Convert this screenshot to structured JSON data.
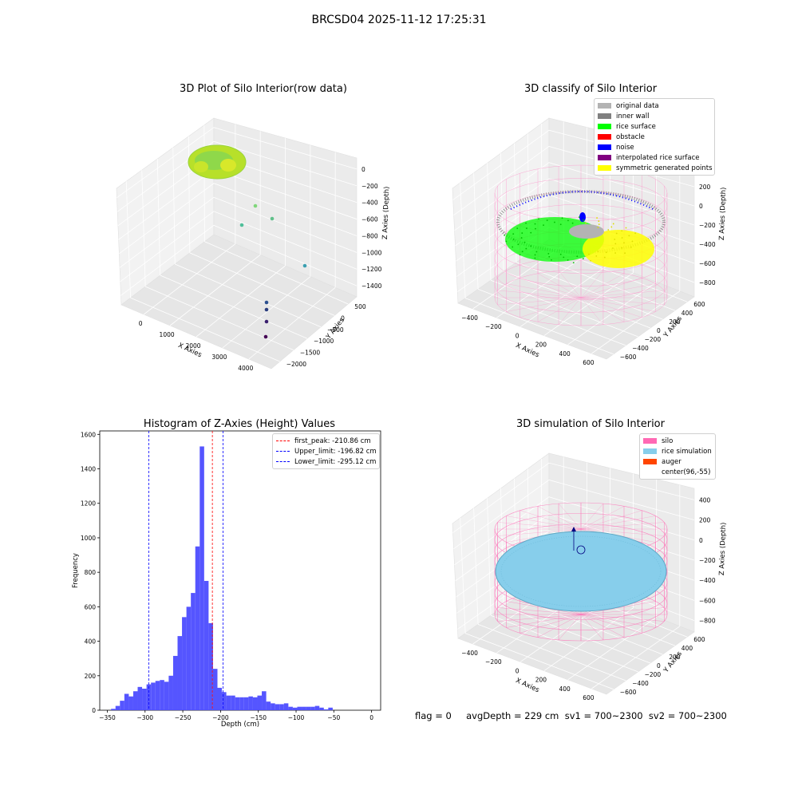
{
  "figure": {
    "title": "BRCSD04 2025-11-12 17:25:31",
    "footer": "flag = 0     avgDepth = 229 cm  sv1 = 700~2300  sv2 = 700~2300"
  },
  "chart_data": [
    {
      "type": "scatter",
      "title": "3D Plot of Silo Interior(row data)",
      "xlabel": "X Axies",
      "ylabel": "Y Axies",
      "zlabel": "Z Axies (Depth)",
      "x_ticks": [
        "0",
        "1000",
        "2000",
        "3000",
        "4000"
      ],
      "y_ticks": [
        "500",
        "0",
        "−500",
        "−1000",
        "−1500",
        "−2000"
      ],
      "z_ticks": [
        "0",
        "−200",
        "−400",
        "−600",
        "−800",
        "−1000",
        "−1200",
        "−1400"
      ],
      "outlier_points": [
        {
          "x": 950,
          "y": -300,
          "z": -600,
          "color": "#7fd67a"
        },
        {
          "x": 1250,
          "y": -350,
          "z": -750,
          "color": "#60c08a"
        },
        {
          "x": 700,
          "y": -150,
          "z": -800,
          "color": "#4fbf9a"
        },
        {
          "x": 2800,
          "y": -400,
          "z": -1400,
          "color": "#3b9fb0"
        },
        {
          "x": 3900,
          "y": -1900,
          "z": -400,
          "color": "#2b4f8f"
        },
        {
          "x": 3900,
          "y": -2000,
          "z": -600,
          "color": "#2a3d7e"
        },
        {
          "x": 3900,
          "y": -2000,
          "z": -800,
          "color": "#3a1f6e"
        },
        {
          "x": 3900,
          "y": -2000,
          "z": -1000,
          "color": "#440154"
        }
      ]
    },
    {
      "type": "scatter",
      "title": "3D classify of Silo Interior",
      "xlabel": "X Axies",
      "ylabel": "Y Axies",
      "zlabel": "Z Axies (Depth)",
      "x_ticks": [
        "−400",
        "−200",
        "0",
        "200",
        "400",
        "600"
      ],
      "y_ticks": [
        "600",
        "400",
        "200",
        "0",
        "−200",
        "−400",
        "−600"
      ],
      "z_ticks": [
        "400",
        "200",
        "0",
        "−200",
        "−400",
        "−600",
        "−800"
      ],
      "legend": [
        {
          "label": "original data",
          "color": "#b3b3b3"
        },
        {
          "label": "inner wall",
          "color": "#808080"
        },
        {
          "label": "rice surface",
          "color": "#00ff00"
        },
        {
          "label": "obstacle",
          "color": "#ff0000"
        },
        {
          "label": "noise",
          "color": "#0000ff"
        },
        {
          "label": "interpolated rice surface",
          "color": "#800080"
        },
        {
          "label": "symmetric generated points",
          "color": "#ffff00"
        }
      ]
    },
    {
      "type": "bar",
      "title": "Histogram of Z-Axies (Height) Values",
      "xlabel": "Depth (cm)",
      "ylabel": "Frequency",
      "xlim": [
        -360,
        12
      ],
      "ylim": [
        0,
        1620
      ],
      "x_ticks": [
        "−350",
        "−300",
        "−250",
        "−200",
        "−150",
        "−100",
        "−50",
        "0"
      ],
      "y_ticks": [
        "0",
        "200",
        "400",
        "600",
        "800",
        "1000",
        "1200",
        "1400",
        "1600"
      ],
      "bin_start": -345,
      "bin_width": 5.87,
      "values": [
        8,
        25,
        55,
        95,
        80,
        110,
        135,
        125,
        150,
        160,
        170,
        175,
        165,
        200,
        315,
        430,
        540,
        600,
        680,
        950,
        1530,
        750,
        505,
        240,
        130,
        105,
        85,
        85,
        75,
        75,
        75,
        80,
        75,
        85,
        110,
        50,
        40,
        35,
        35,
        40,
        20,
        15,
        20,
        20,
        20,
        20,
        25,
        15,
        5,
        15
      ],
      "bar_color": "#4c4cff",
      "lines": [
        {
          "label": "first_peak: -210.86 cm",
          "value": -210.86,
          "color": "#ff0000"
        },
        {
          "label": "Upper_limit: -196.82 cm",
          "value": -196.82,
          "color": "#0000ff"
        },
        {
          "label": "Lower_limit: -295.12 cm",
          "value": -295.12,
          "color": "#0000ff"
        }
      ]
    },
    {
      "type": "scatter",
      "title": "3D simulation of Silo Interior",
      "xlabel": "X Axies",
      "ylabel": "Y Axies",
      "zlabel": "Z Axies (Depth)",
      "x_ticks": [
        "−400",
        "−200",
        "0",
        "200",
        "400",
        "600"
      ],
      "y_ticks": [
        "600",
        "400",
        "200",
        "0",
        "−200",
        "−400",
        "−600"
      ],
      "z_ticks": [
        "400",
        "200",
        "0",
        "−200",
        "−400",
        "−600",
        "−800"
      ],
      "legend": [
        {
          "label": "silo",
          "color": "#ff69b4"
        },
        {
          "label": "rice simulation",
          "color": "#87ceeb"
        },
        {
          "label": "auger",
          "color": "#ff4500"
        },
        {
          "label": "center(96,-55)",
          "color": ""
        }
      ]
    }
  ]
}
